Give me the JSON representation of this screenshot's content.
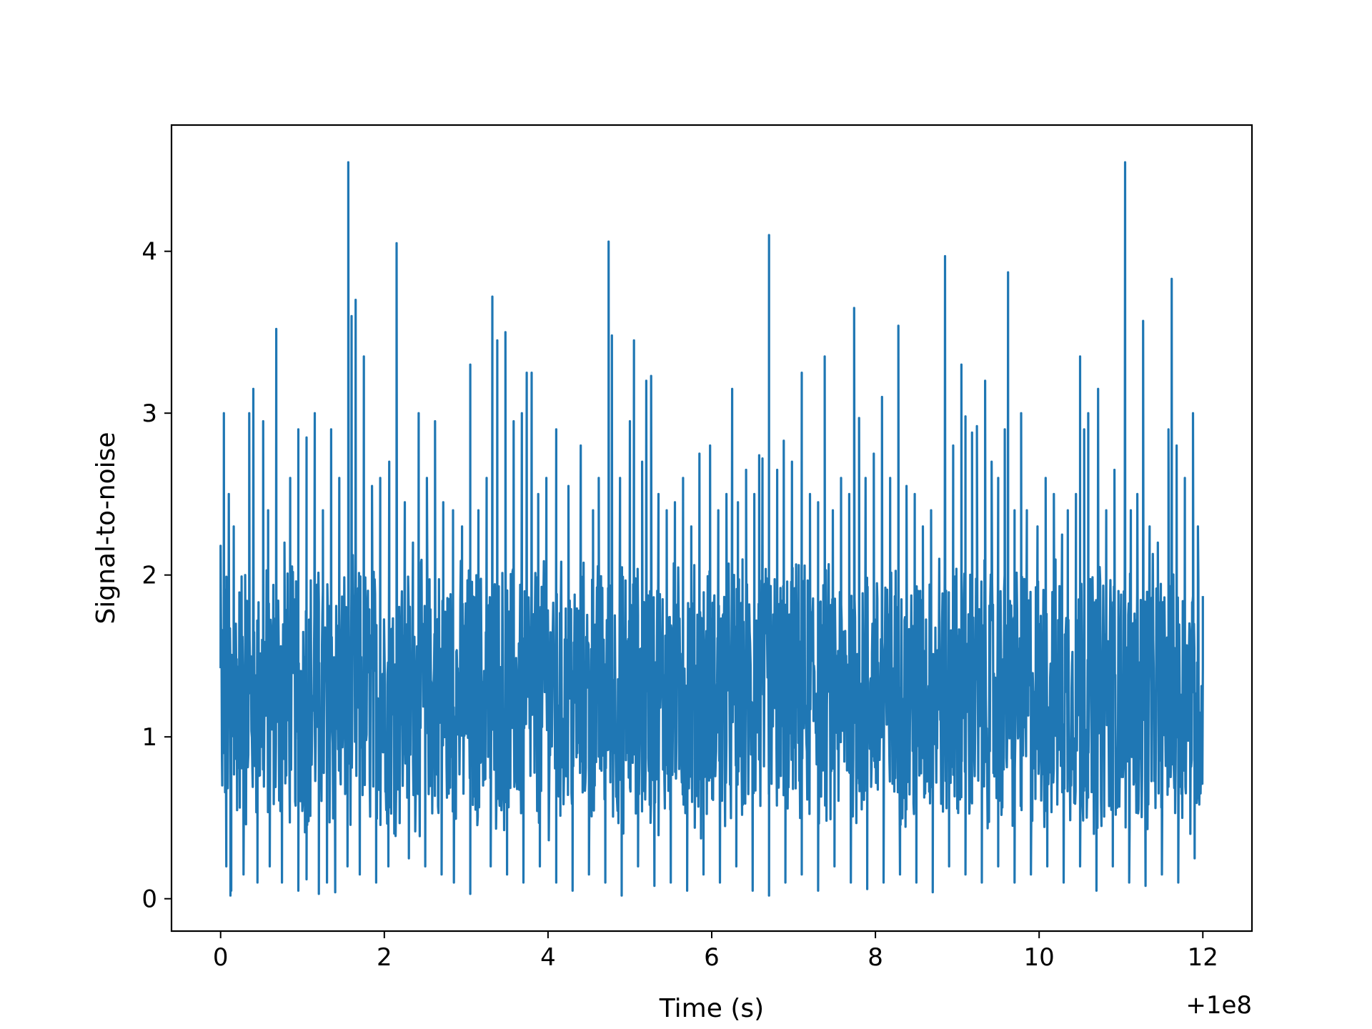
{
  "chart_data": {
    "type": "line",
    "title": "",
    "xlabel": "Time (s)",
    "ylabel": "Signal-to-noise",
    "x_offset_label": "+1e8",
    "xlim": [
      -0.6,
      12.6
    ],
    "ylim": [
      -0.2,
      4.78
    ],
    "xticks": [
      0,
      2,
      4,
      6,
      8,
      10,
      12
    ],
    "xtick_labels": [
      "0",
      "2",
      "4",
      "6",
      "8",
      "10",
      "12"
    ],
    "yticks": [
      0,
      1,
      2,
      3,
      4
    ],
    "ytick_labels": [
      "0",
      "1",
      "2",
      "3",
      "4"
    ],
    "grid": false,
    "legend": "none",
    "series": [
      {
        "color": "#1f77b4",
        "x_range": [
          0,
          12
        ],
        "baseline_band": [
          0.5,
          2.0
        ],
        "points": [
          [
            0.0,
            2.18
          ],
          [
            0.02,
            0.7
          ],
          [
            0.04,
            3.0
          ],
          [
            0.07,
            0.2
          ],
          [
            0.1,
            2.5
          ],
          [
            0.13,
            0.05
          ],
          [
            0.16,
            2.3
          ],
          [
            0.3,
            2.0
          ],
          [
            0.35,
            3.0
          ],
          [
            0.4,
            3.15
          ],
          [
            0.45,
            0.3
          ],
          [
            0.52,
            2.95
          ],
          [
            0.58,
            2.4
          ],
          [
            0.68,
            3.52
          ],
          [
            0.78,
            2.2
          ],
          [
            0.85,
            2.6
          ],
          [
            0.95,
            2.9
          ],
          [
            1.05,
            2.85
          ],
          [
            1.15,
            3.0
          ],
          [
            1.25,
            2.4
          ],
          [
            1.35,
            2.9
          ],
          [
            1.45,
            2.6
          ],
          [
            1.56,
            4.55
          ],
          [
            1.6,
            3.6
          ],
          [
            1.65,
            3.7
          ],
          [
            1.75,
            3.35
          ],
          [
            1.85,
            2.55
          ],
          [
            1.95,
            2.6
          ],
          [
            2.06,
            2.7
          ],
          [
            2.15,
            4.05
          ],
          [
            2.25,
            2.45
          ],
          [
            2.35,
            2.2
          ],
          [
            2.42,
            3.0
          ],
          [
            2.52,
            2.6
          ],
          [
            2.62,
            2.95
          ],
          [
            2.72,
            2.45
          ],
          [
            2.84,
            2.4
          ],
          [
            2.95,
            2.3
          ],
          [
            3.05,
            3.3
          ],
          [
            3.15,
            2.4
          ],
          [
            3.25,
            2.6
          ],
          [
            3.32,
            3.72
          ],
          [
            3.38,
            3.45
          ],
          [
            3.48,
            3.5
          ],
          [
            3.58,
            2.95
          ],
          [
            3.68,
            3.0
          ],
          [
            3.74,
            3.25
          ],
          [
            3.8,
            3.25
          ],
          [
            3.88,
            2.5
          ],
          [
            3.98,
            2.6
          ],
          [
            4.1,
            2.9
          ],
          [
            4.25,
            2.55
          ],
          [
            4.4,
            2.8
          ],
          [
            4.55,
            2.4
          ],
          [
            4.62,
            2.6
          ],
          [
            4.74,
            4.06
          ],
          [
            4.78,
            3.48
          ],
          [
            4.88,
            2.6
          ],
          [
            5.0,
            2.95
          ],
          [
            5.05,
            3.45
          ],
          [
            5.15,
            2.7
          ],
          [
            5.2,
            3.2
          ],
          [
            5.26,
            3.23
          ],
          [
            5.35,
            2.5
          ],
          [
            5.45,
            2.4
          ],
          [
            5.55,
            2.45
          ],
          [
            5.65,
            2.6
          ],
          [
            5.75,
            2.3
          ],
          [
            5.85,
            2.75
          ],
          [
            5.98,
            2.8
          ],
          [
            6.08,
            2.4
          ],
          [
            6.18,
            2.5
          ],
          [
            6.25,
            3.15
          ],
          [
            6.32,
            2.45
          ],
          [
            6.42,
            2.65
          ],
          [
            6.52,
            2.5
          ],
          [
            6.58,
            2.74
          ],
          [
            6.62,
            2.72
          ],
          [
            6.7,
            4.1
          ],
          [
            6.8,
            2.65
          ],
          [
            6.88,
            2.83
          ],
          [
            6.98,
            2.7
          ],
          [
            7.1,
            3.25
          ],
          [
            7.2,
            2.5
          ],
          [
            7.3,
            2.45
          ],
          [
            7.38,
            3.35
          ],
          [
            7.48,
            2.4
          ],
          [
            7.58,
            2.6
          ],
          [
            7.68,
            2.5
          ],
          [
            7.74,
            3.65
          ],
          [
            7.8,
            2.97
          ],
          [
            7.88,
            2.6
          ],
          [
            7.98,
            2.75
          ],
          [
            8.08,
            3.1
          ],
          [
            8.18,
            2.6
          ],
          [
            8.28,
            3.54
          ],
          [
            8.38,
            2.55
          ],
          [
            8.48,
            2.5
          ],
          [
            8.58,
            2.3
          ],
          [
            8.68,
            2.4
          ],
          [
            8.78,
            2.1
          ],
          [
            8.85,
            3.97
          ],
          [
            8.95,
            2.8
          ],
          [
            9.05,
            3.3
          ],
          [
            9.1,
            2.98
          ],
          [
            9.18,
            2.88
          ],
          [
            9.24,
            2.92
          ],
          [
            9.34,
            3.2
          ],
          [
            9.42,
            2.7
          ],
          [
            9.5,
            2.6
          ],
          [
            9.58,
            2.9
          ],
          [
            9.62,
            3.87
          ],
          [
            9.7,
            2.4
          ],
          [
            9.78,
            3.0
          ],
          [
            9.85,
            2.4
          ],
          [
            9.98,
            2.3
          ],
          [
            10.08,
            2.6
          ],
          [
            10.18,
            2.5
          ],
          [
            10.28,
            2.25
          ],
          [
            10.35,
            2.4
          ],
          [
            10.45,
            2.5
          ],
          [
            10.5,
            3.35
          ],
          [
            10.55,
            2.9
          ],
          [
            10.6,
            3.0
          ],
          [
            10.72,
            3.15
          ],
          [
            10.82,
            2.4
          ],
          [
            10.92,
            2.65
          ],
          [
            11.05,
            4.55
          ],
          [
            11.12,
            2.4
          ],
          [
            11.2,
            2.5
          ],
          [
            11.27,
            3.57
          ],
          [
            11.35,
            2.3
          ],
          [
            11.45,
            2.2
          ],
          [
            11.58,
            2.9
          ],
          [
            11.62,
            3.83
          ],
          [
            11.68,
            2.8
          ],
          [
            11.78,
            2.6
          ],
          [
            11.88,
            3.0
          ],
          [
            11.94,
            2.3
          ],
          [
            12.0,
            1.87
          ]
        ],
        "troughs": [
          [
            0.12,
            0.02
          ],
          [
            0.28,
            0.15
          ],
          [
            0.45,
            0.1
          ],
          [
            0.6,
            0.2
          ],
          [
            0.75,
            0.1
          ],
          [
            0.95,
            0.05
          ],
          [
            1.05,
            0.12
          ],
          [
            1.2,
            0.03
          ],
          [
            1.3,
            0.1
          ],
          [
            1.4,
            0.04
          ],
          [
            1.55,
            0.2
          ],
          [
            1.7,
            0.15
          ],
          [
            1.9,
            0.1
          ],
          [
            2.05,
            0.2
          ],
          [
            2.3,
            0.25
          ],
          [
            2.5,
            0.2
          ],
          [
            2.7,
            0.15
          ],
          [
            2.85,
            0.1
          ],
          [
            3.05,
            0.03
          ],
          [
            3.3,
            0.2
          ],
          [
            3.5,
            0.15
          ],
          [
            3.7,
            0.1
          ],
          [
            3.9,
            0.2
          ],
          [
            4.1,
            0.1
          ],
          [
            4.3,
            0.05
          ],
          [
            4.5,
            0.15
          ],
          [
            4.7,
            0.1
          ],
          [
            4.9,
            0.02
          ],
          [
            5.1,
            0.2
          ],
          [
            5.3,
            0.08
          ],
          [
            5.5,
            0.1
          ],
          [
            5.7,
            0.05
          ],
          [
            5.9,
            0.15
          ],
          [
            6.1,
            0.1
          ],
          [
            6.3,
            0.2
          ],
          [
            6.5,
            0.05
          ],
          [
            6.7,
            0.02
          ],
          [
            6.9,
            0.1
          ],
          [
            7.1,
            0.15
          ],
          [
            7.3,
            0.05
          ],
          [
            7.5,
            0.2
          ],
          [
            7.7,
            0.1
          ],
          [
            7.9,
            0.06
          ],
          [
            8.1,
            0.1
          ],
          [
            8.3,
            0.15
          ],
          [
            8.5,
            0.1
          ],
          [
            8.7,
            0.04
          ],
          [
            8.9,
            0.2
          ],
          [
            9.1,
            0.15
          ],
          [
            9.3,
            0.1
          ],
          [
            9.5,
            0.2
          ],
          [
            9.7,
            0.1
          ],
          [
            9.9,
            0.15
          ],
          [
            10.1,
            0.2
          ],
          [
            10.3,
            0.1
          ],
          [
            10.5,
            0.2
          ],
          [
            10.7,
            0.05
          ],
          [
            10.9,
            0.2
          ],
          [
            11.1,
            0.1
          ],
          [
            11.3,
            0.08
          ],
          [
            11.5,
            0.15
          ],
          [
            11.7,
            0.1
          ],
          [
            11.9,
            0.25
          ]
        ]
      }
    ]
  }
}
